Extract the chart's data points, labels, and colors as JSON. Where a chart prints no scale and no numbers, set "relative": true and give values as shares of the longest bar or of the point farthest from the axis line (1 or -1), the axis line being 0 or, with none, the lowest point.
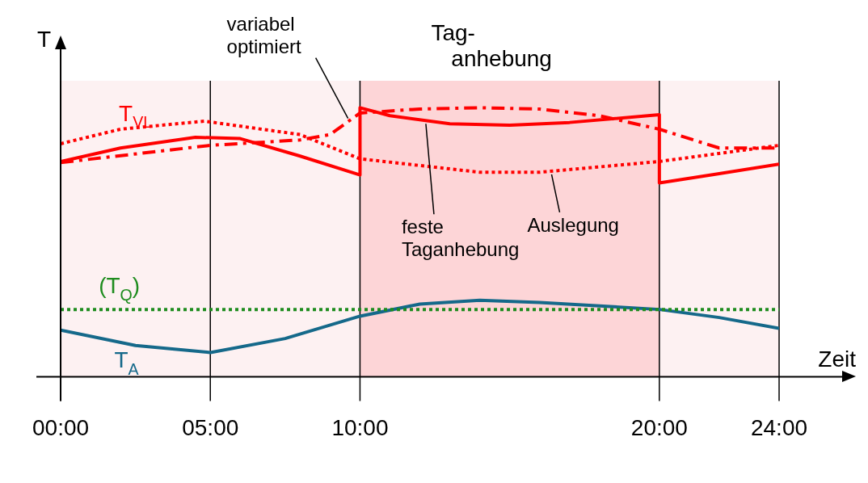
{
  "chart_data": {
    "type": "line",
    "relative": true,
    "xlabel": "Zeit",
    "ylabel": "T",
    "grid": "x",
    "legend": false,
    "marker": "none",
    "tick_labels": "x",
    "xlim": [
      0,
      24
    ],
    "xticks": [
      {
        "value": 0,
        "label": "00:00"
      },
      {
        "value": 5,
        "label": "05:00"
      },
      {
        "value": 10,
        "label": "10:00"
      },
      {
        "value": 20,
        "label": "20:00"
      },
      {
        "value": 24,
        "label": "24:00"
      }
    ],
    "bands": [
      {
        "axis": "x",
        "from": 0,
        "to": 24,
        "color": "#fdf1f2"
      },
      {
        "axis": "x",
        "from": 10,
        "to": 20,
        "label": "Tag-anhebung",
        "color": "#fdd5d7"
      }
    ],
    "annotations": [
      "T$_{VL}$"
    ],
    "series": [
      {
        "name": "feste Taganhebung",
        "color": "#ff0000",
        "line_style": "solid",
        "x": [
          0,
          2,
          4.5,
          6,
          8,
          10,
          10,
          11,
          13,
          15,
          17,
          20,
          20,
          22,
          24
        ],
        "values": [
          0.8,
          0.85,
          0.89,
          0.885,
          0.82,
          0.75,
          1.0,
          0.97,
          0.94,
          0.935,
          0.945,
          0.974,
          0.72,
          0.755,
          0.79
        ]
      },
      {
        "name": "variabel optimiert",
        "color": "#ff0000",
        "line_style": "dashed",
        "x": [
          0,
          5,
          8,
          9,
          9.5,
          10,
          12,
          14,
          16,
          18,
          20,
          22,
          24
        ],
        "values": [
          0.796,
          0.86,
          0.88,
          0.9,
          0.94,
          0.98,
          0.995,
          1.0,
          0.995,
          0.97,
          0.92,
          0.85,
          0.85
        ]
      },
      {
        "name": "Auslegung",
        "color": "#ff0000",
        "line_style": "dotted",
        "x": [
          0,
          2,
          4.8,
          8,
          10,
          14,
          16,
          20,
          22,
          24
        ],
        "values": [
          0.866,
          0.92,
          0.95,
          0.9,
          0.81,
          0.76,
          0.76,
          0.8,
          0.83,
          0.86
        ]
      },
      {
        "name": "(T$_{Q}$)",
        "color": "#1e8c1e",
        "line_style": "dotted",
        "x": [
          0,
          24
        ],
        "values": [
          0.25,
          0.25
        ]
      },
      {
        "name": "T$_{A}$",
        "color": "#15698a",
        "line_style": "solid",
        "x": [
          0,
          2.5,
          5,
          7.5,
          10,
          12,
          14,
          16,
          20,
          22,
          24
        ],
        "values": [
          0.173,
          0.116,
          0.09,
          0.142,
          0.225,
          0.27,
          0.284,
          0.276,
          0.25,
          0.22,
          0.18
        ]
      }
    ]
  }
}
